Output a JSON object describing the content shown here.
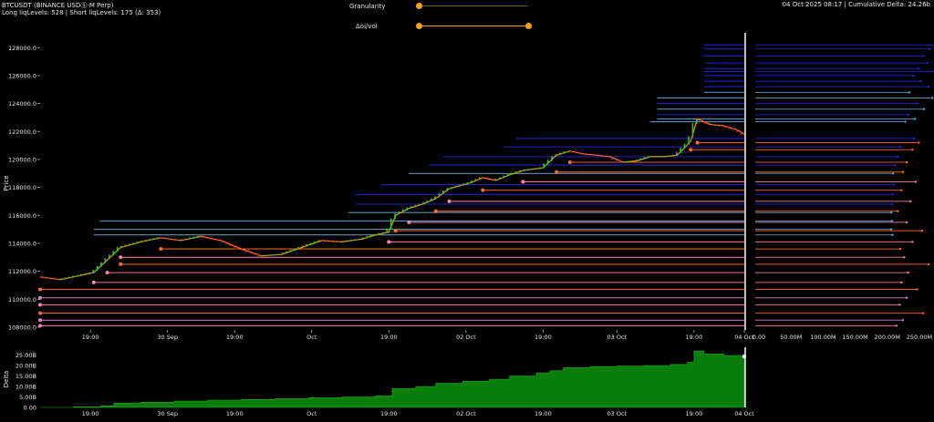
{
  "header": {
    "symbol_line": "BTCUSDT (BINANCE USDⓈ-M Perp)",
    "stats_line": "Long liqLevels: 528 | Short liqLevels: 175 (Δ: 353)",
    "right_info": "04 Oct 2025 08:17 | Cumulative Delta: 24.26b"
  },
  "controls": {
    "granularity_label": "Granularity",
    "granularity_value": 0.0,
    "oivol_label": "Δoi/vol",
    "oivol_value": 1.0
  },
  "colors": {
    "short_blue": "#2424d8",
    "short_lightblue": "#5fa6c8",
    "long_orange": "#ff6a2a",
    "long_pink": "#ff7fb0",
    "long_magenta": "#e07ad8",
    "candle_up": "#22cc22",
    "candle_down": "#dd2222",
    "delta_fill": "#0b7d0b",
    "accent": "#f3a21a"
  },
  "chart_data": [
    {
      "type": "line",
      "name": "price-chart",
      "ylabel": "Price",
      "ylim": [
        107800,
        128800
      ],
      "yticks": [
        "108000.0",
        "110000.0",
        "112000.0",
        "114000.0",
        "116000.0",
        "118000.0",
        "120000.0",
        "122000.0",
        "124000.0",
        "126000.0",
        "128000.0"
      ],
      "xticks": [
        "19:00",
        "30 Sep",
        "19:00",
        "Oct",
        "19:00",
        "02 Oct",
        "19:00",
        "03 Oct",
        "19:00",
        "04 Oct"
      ],
      "price_series": [
        {
          "t": 0,
          "p": 111600
        },
        {
          "t": 6,
          "p": 111400
        },
        {
          "t": 12,
          "p": 111700
        },
        {
          "t": 16,
          "p": 111900
        },
        {
          "t": 20,
          "p": 112800
        },
        {
          "t": 24,
          "p": 113700
        },
        {
          "t": 30,
          "p": 114100
        },
        {
          "t": 36,
          "p": 114400
        },
        {
          "t": 42,
          "p": 114200
        },
        {
          "t": 48,
          "p": 114500
        },
        {
          "t": 54,
          "p": 114200
        },
        {
          "t": 60,
          "p": 113600
        },
        {
          "t": 66,
          "p": 113100
        },
        {
          "t": 72,
          "p": 113200
        },
        {
          "t": 78,
          "p": 113700
        },
        {
          "t": 84,
          "p": 114200
        },
        {
          "t": 90,
          "p": 114100
        },
        {
          "t": 96,
          "p": 114300
        },
        {
          "t": 100,
          "p": 114600
        },
        {
          "t": 104,
          "p": 114800
        },
        {
          "t": 106,
          "p": 116000
        },
        {
          "t": 110,
          "p": 116500
        },
        {
          "t": 114,
          "p": 116800
        },
        {
          "t": 118,
          "p": 117200
        },
        {
          "t": 122,
          "p": 117900
        },
        {
          "t": 128,
          "p": 118300
        },
        {
          "t": 132,
          "p": 118700
        },
        {
          "t": 136,
          "p": 118500
        },
        {
          "t": 140,
          "p": 118900
        },
        {
          "t": 144,
          "p": 119200
        },
        {
          "t": 150,
          "p": 119400
        },
        {
          "t": 154,
          "p": 120300
        },
        {
          "t": 158,
          "p": 120600
        },
        {
          "t": 162,
          "p": 120400
        },
        {
          "t": 166,
          "p": 120300
        },
        {
          "t": 170,
          "p": 120200
        },
        {
          "t": 174,
          "p": 119800
        },
        {
          "t": 178,
          "p": 119900
        },
        {
          "t": 182,
          "p": 120200
        },
        {
          "t": 186,
          "p": 120200
        },
        {
          "t": 190,
          "p": 120300
        },
        {
          "t": 194,
          "p": 121300
        },
        {
          "t": 196,
          "p": 122900
        },
        {
          "t": 200,
          "p": 122500
        },
        {
          "t": 204,
          "p": 122400
        },
        {
          "t": 208,
          "p": 122100
        },
        {
          "t": 210,
          "p": 121800
        }
      ],
      "short_levels": [
        {
          "price": 128200,
          "end": 283,
          "color": "blue"
        },
        {
          "price": 127900,
          "end": 272,
          "color": "blue"
        },
        {
          "price": 127400,
          "end": 262,
          "color": "blue"
        },
        {
          "price": 126900,
          "end": 268,
          "color": "blue"
        },
        {
          "price": 126500,
          "end": 255,
          "color": "blue"
        },
        {
          "price": 126300,
          "end": 290,
          "color": "blue"
        },
        {
          "price": 126000,
          "end": 247,
          "color": "blue"
        },
        {
          "price": 125600,
          "end": 258,
          "color": "blue"
        },
        {
          "price": 125200,
          "end": 270,
          "color": "blue"
        },
        {
          "price": 124800,
          "end": 240,
          "color": "lightblue"
        },
        {
          "price": 124400,
          "end": 276,
          "color": "lightblue"
        },
        {
          "price": 124000,
          "end": 252,
          "color": "blue"
        },
        {
          "price": 123600,
          "end": 263,
          "color": "lightblue"
        },
        {
          "price": 123200,
          "end": 238,
          "color": "blue"
        },
        {
          "price": 122900,
          "end": 249,
          "color": "lightblue"
        },
        {
          "price": 122700,
          "end": 234,
          "color": "lightblue"
        },
        {
          "price": 121500,
          "end": 248,
          "color": "blue"
        },
        {
          "price": 120900,
          "end": 226,
          "color": "blue"
        },
        {
          "price": 120200,
          "end": 222,
          "color": "blue"
        },
        {
          "price": 119600,
          "end": 218,
          "color": "blue"
        },
        {
          "price": 119000,
          "end": 215,
          "color": "lightblue"
        },
        {
          "price": 118200,
          "end": 216,
          "color": "blue"
        },
        {
          "price": 117500,
          "end": 214,
          "color": "blue"
        },
        {
          "price": 116800,
          "end": 213,
          "color": "blue"
        },
        {
          "price": 116200,
          "end": 212,
          "color": "lightblue"
        },
        {
          "price": 115600,
          "end": 213,
          "color": "lightblue"
        },
        {
          "price": 115000,
          "end": 212,
          "color": "lightblue"
        },
        {
          "price": 114600,
          "end": 214,
          "color": "lightblue"
        }
      ],
      "long_levels": [
        {
          "price": 121200,
          "end": 255,
          "color": "orange"
        },
        {
          "price": 120700,
          "end": 245,
          "color": "orange"
        },
        {
          "price": 119800,
          "end": 236,
          "color": "orange"
        },
        {
          "price": 119100,
          "end": 230,
          "color": "orange"
        },
        {
          "price": 118400,
          "end": 250,
          "color": "pink"
        },
        {
          "price": 117800,
          "end": 228,
          "color": "orange"
        },
        {
          "price": 117000,
          "end": 242,
          "color": "pink"
        },
        {
          "price": 116300,
          "end": 222,
          "color": "orange"
        },
        {
          "price": 115500,
          "end": 236,
          "color": "pink"
        },
        {
          "price": 114900,
          "end": 260,
          "color": "orange"
        },
        {
          "price": 114100,
          "end": 245,
          "color": "pink"
        },
        {
          "price": 113600,
          "end": 226,
          "color": "orange"
        },
        {
          "price": 113000,
          "end": 232,
          "color": "pink"
        },
        {
          "price": 112500,
          "end": 270,
          "color": "orange"
        },
        {
          "price": 111900,
          "end": 238,
          "color": "pink"
        },
        {
          "price": 111200,
          "end": 228,
          "color": "pink"
        },
        {
          "price": 110700,
          "end": 252,
          "color": "orange"
        },
        {
          "price": 110100,
          "end": 236,
          "color": "magenta"
        },
        {
          "price": 109600,
          "end": 225,
          "color": "pink"
        },
        {
          "price": 109000,
          "end": 262,
          "color": "orange"
        },
        {
          "price": 108500,
          "end": 230,
          "color": "magenta"
        },
        {
          "price": 108100,
          "end": 220,
          "color": "pink"
        }
      ]
    },
    {
      "type": "bar",
      "name": "liquidation-volume-profile",
      "xticks": [
        "0.00",
        "50.00M",
        "100.00M",
        "150.00M",
        "200.00M",
        "250.00M"
      ],
      "xlim": [
        0,
        270
      ]
    },
    {
      "type": "area",
      "name": "cumulative-delta",
      "ylabel": "Delta",
      "ylim": [
        0,
        27
      ],
      "yticks": [
        "0.00",
        "5.00B",
        "10.00B",
        "15.00B",
        "20.00B",
        "25.00B"
      ],
      "xticks": [
        "19:00",
        "30 Sep",
        "19:00",
        "Oct",
        "19:00",
        "02 Oct",
        "19:00",
        "03 Oct",
        "19:00",
        "04 Oct"
      ],
      "series": [
        {
          "t": 0,
          "v": 0
        },
        {
          "t": 10,
          "v": 0.3
        },
        {
          "t": 18,
          "v": 0.8
        },
        {
          "t": 22,
          "v": 2.0
        },
        {
          "t": 30,
          "v": 2.5
        },
        {
          "t": 40,
          "v": 3.0
        },
        {
          "t": 50,
          "v": 3.5
        },
        {
          "t": 60,
          "v": 3.8
        },
        {
          "t": 70,
          "v": 4.2
        },
        {
          "t": 80,
          "v": 4.6
        },
        {
          "t": 90,
          "v": 5.0
        },
        {
          "t": 100,
          "v": 5.5
        },
        {
          "t": 105,
          "v": 9.0
        },
        {
          "t": 112,
          "v": 10.0
        },
        {
          "t": 118,
          "v": 11.5
        },
        {
          "t": 126,
          "v": 12.5
        },
        {
          "t": 134,
          "v": 13.5
        },
        {
          "t": 140,
          "v": 15.0
        },
        {
          "t": 148,
          "v": 16.5
        },
        {
          "t": 152,
          "v": 17.5
        },
        {
          "t": 156,
          "v": 19.0
        },
        {
          "t": 164,
          "v": 19.5
        },
        {
          "t": 172,
          "v": 19.8
        },
        {
          "t": 180,
          "v": 20.0
        },
        {
          "t": 188,
          "v": 20.5
        },
        {
          "t": 193,
          "v": 21.5
        },
        {
          "t": 195,
          "v": 27.0
        },
        {
          "t": 198,
          "v": 25.5
        },
        {
          "t": 204,
          "v": 24.8
        },
        {
          "t": 210,
          "v": 24.3
        }
      ]
    }
  ]
}
